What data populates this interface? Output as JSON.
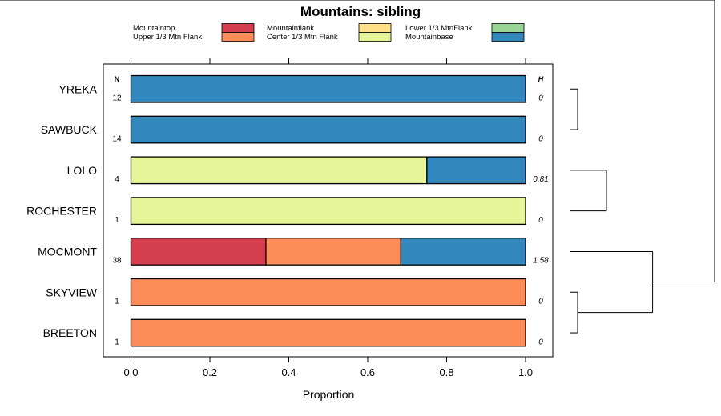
{
  "chart_data": {
    "type": "bar",
    "orientation": "horizontal",
    "stacked": true,
    "title": "Mountains: sibling",
    "xlabel": "Proportion",
    "xlim": [
      0,
      1
    ],
    "xticks": [
      "0.0",
      "0.2",
      "0.4",
      "0.6",
      "0.8",
      "1.0"
    ],
    "n_header": "N",
    "h_header": "H",
    "legend": [
      {
        "label": "Mountaintop",
        "color": "#d53e4f"
      },
      {
        "label": "Upper 1/3 Mtn Flank",
        "color": "#fc8d59"
      },
      {
        "label": "Mountainflank",
        "color": "#fee08b"
      },
      {
        "label": "Center 1/3 Mtn Flank",
        "color": "#e6f598"
      },
      {
        "label": "Lower 1/3 MtnFlank",
        "color": "#99d594"
      },
      {
        "label": "Mountainbase",
        "color": "#3288bd"
      }
    ],
    "categories": [
      "YREKA",
      "SAWBUCK",
      "LOLO",
      "ROCHESTER",
      "MOCMONT",
      "SKYVIEW",
      "BREETON"
    ],
    "n": [
      "12",
      "14",
      "4",
      "1",
      "38",
      "1",
      "1"
    ],
    "h": [
      "0",
      "0",
      "0.81",
      "0",
      "1.58",
      "0",
      "0"
    ],
    "series": [
      {
        "name": "Mountaintop",
        "values": [
          0,
          0,
          0,
          0,
          0.342,
          0,
          0
        ]
      },
      {
        "name": "Upper 1/3 Mtn Flank",
        "values": [
          0,
          0,
          0,
          0,
          0.342,
          1,
          1
        ]
      },
      {
        "name": "Mountainflank",
        "values": [
          0,
          0,
          0,
          0,
          0,
          0,
          0
        ]
      },
      {
        "name": "Center 1/3 Mtn Flank",
        "values": [
          0,
          0,
          0.75,
          1,
          0,
          0,
          0
        ]
      },
      {
        "name": "Lower 1/3 MtnFlank",
        "values": [
          0,
          0,
          0,
          0,
          0,
          0,
          0
        ]
      },
      {
        "name": "Mountainbase",
        "values": [
          1,
          1,
          0.25,
          0,
          0.316,
          0,
          0
        ]
      }
    ],
    "dendrogram": {
      "leaves": [
        "YREKA",
        "SAWBUCK",
        "LOLO",
        "ROCHESTER",
        "MOCMONT",
        "SKYVIEW",
        "BREETON"
      ],
      "merges": [
        {
          "a": "YREKA",
          "b": "SAWBUCK",
          "height": 0.05
        },
        {
          "a": "SKYVIEW",
          "b": "BREETON",
          "height": 0.05
        },
        {
          "a": "LOLO",
          "b": "ROCHESTER",
          "height": 0.25
        },
        {
          "a": "MOCMONT",
          "b": "SKYVIEW+BREETON",
          "height": 0.57
        },
        {
          "a": "YREKA+SAWBUCK+LOLO+ROCHESTER",
          "b": "MOCMONT+SKYVIEW+BREETON",
          "height": 1.0
        }
      ]
    }
  }
}
